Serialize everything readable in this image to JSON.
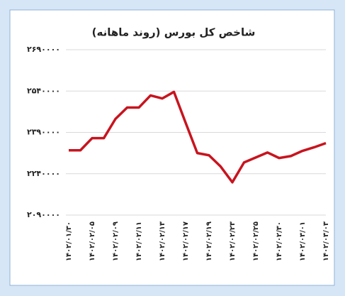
{
  "chart_data": {
    "type": "line",
    "title": "شاخص کل بورس (روند ماهانه)",
    "categories": [
      "۱۴۰۲/۰۱/۳۰",
      null,
      "۱۴۰۲/۰۲/۰۵",
      null,
      "۱۴۰۲/۰۲/۰۹",
      null,
      "۱۴۰۲/۰۲/۱۱",
      null,
      "۱۴۰۲/۰۲/۱۳",
      null,
      "۱۴۰۲/۰۲/۱۷",
      null,
      "۱۴۰۲/۰۲/۱۹",
      null,
      "۱۴۰۲/۰۲/۲۳",
      null,
      "۱۴۰۲/۰۲/۲۵",
      null,
      "۱۴۰۲/۰۲/۳۰",
      null,
      "۱۴۰۲/۰۳/۰۱",
      null,
      "۱۴۰۲/۰۳/۰۳"
    ],
    "series": [
      {
        "name": "شاخص کل",
        "color": "#c8141e",
        "values": [
          2325000,
          2325000,
          2369000,
          2369000,
          2439000,
          2480000,
          2480000,
          2524000,
          2513000,
          2537000,
          2425000,
          2315000,
          2307000,
          2266000,
          2209000,
          2281000,
          2299000,
          2317000,
          2297000,
          2304000,
          2323000,
          2336000,
          2351000
        ]
      }
    ],
    "ylim": [
      2090000,
      2690000
    ],
    "yticks": [
      {
        "value": 2090000,
        "label": "۲۰۹۰۰۰۰"
      },
      {
        "value": 2240000,
        "label": "۲۲۴۰۰۰۰"
      },
      {
        "value": 2390000,
        "label": "۲۳۹۰۰۰۰"
      },
      {
        "value": 2540000,
        "label": "۲۵۴۰۰۰۰"
      },
      {
        "value": 2690000,
        "label": "۲۶۹۰۰۰۰"
      }
    ],
    "grid": true
  }
}
